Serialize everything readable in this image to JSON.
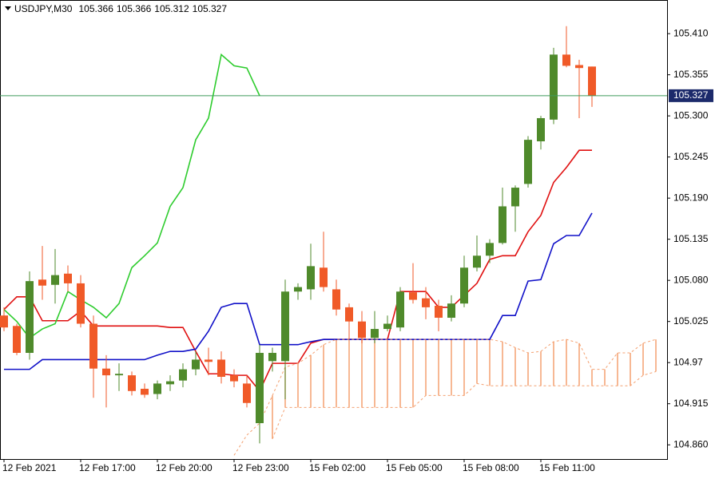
{
  "chart_data": {
    "type": "candlestick",
    "title": "USDJPY,M30",
    "categories": [
      "12 Feb 2021",
      null,
      null,
      null,
      null,
      null,
      "12 Feb 17:00",
      null,
      null,
      null,
      null,
      null,
      "12 Feb 20:00",
      null,
      null,
      null,
      null,
      null,
      "12 Feb 23:00",
      null,
      null,
      null,
      null,
      null,
      "15 Feb 02:00",
      null,
      null,
      null,
      null,
      null,
      "15 Feb 05:00",
      null,
      null,
      null,
      null,
      null,
      "15 Feb 08:00",
      null,
      null,
      null,
      null,
      null,
      "15 Feb 11:00",
      null,
      null,
      null,
      null,
      null,
      null,
      null,
      null,
      null
    ],
    "ohlc": [
      [
        105.033,
        105.044,
        105.012,
        105.017
      ],
      [
        105.019,
        105.022,
        104.98,
        104.983
      ],
      [
        104.983,
        105.092,
        104.974,
        105.079
      ],
      [
        105.081,
        105.126,
        105.054,
        105.073
      ],
      [
        105.074,
        105.122,
        105.049,
        105.087
      ],
      [
        105.089,
        105.1,
        105.065,
        105.076
      ],
      [
        105.076,
        105.087,
        105.017,
        105.022
      ],
      [
        105.022,
        105.033,
        104.923,
        104.962
      ],
      [
        104.962,
        104.98,
        104.91,
        104.953
      ],
      [
        104.953,
        104.969,
        104.932,
        104.955
      ],
      [
        104.953,
        104.958,
        104.926,
        104.932
      ],
      [
        104.935,
        104.942,
        104.923,
        104.927
      ],
      [
        104.928,
        104.946,
        104.921,
        104.942
      ],
      [
        104.941,
        104.953,
        104.932,
        104.945
      ],
      [
        104.946,
        104.969,
        104.937,
        104.961
      ],
      [
        104.961,
        104.985,
        104.953,
        104.974
      ],
      [
        104.974,
        104.99,
        104.953,
        104.971
      ],
      [
        104.974,
        104.985,
        104.942,
        104.951
      ],
      [
        104.953,
        104.961,
        104.937,
        104.945
      ],
      [
        104.942,
        104.953,
        104.91,
        104.916
      ],
      [
        104.889,
        104.994,
        104.862,
        104.983
      ],
      [
        104.972,
        104.99,
        104.958,
        104.983
      ],
      [
        104.972,
        105.081,
        104.921,
        105.065
      ],
      [
        105.065,
        105.076,
        105.054,
        105.071
      ],
      [
        105.068,
        105.129,
        105.054,
        105.099
      ],
      [
        105.097,
        105.145,
        105.065,
        105.071
      ],
      [
        105.068,
        105.081,
        105.033,
        105.041
      ],
      [
        105.044,
        105.049,
        105.001,
        105.025
      ],
      [
        105.025,
        105.039,
        104.996,
        105.003
      ],
      [
        105.003,
        105.039,
        104.996,
        105.015
      ],
      [
        105.015,
        105.033,
        105.012,
        105.022
      ],
      [
        105.017,
        105.071,
        105.012,
        105.065
      ],
      [
        105.064,
        105.103,
        105.049,
        105.054
      ],
      [
        105.056,
        105.071,
        105.028,
        105.044
      ],
      [
        105.046,
        105.054,
        105.012,
        105.03
      ],
      [
        105.03,
        105.06,
        105.025,
        105.049
      ],
      [
        105.049,
        105.113,
        105.044,
        105.097
      ],
      [
        105.097,
        105.14,
        105.092,
        105.113
      ],
      [
        105.113,
        105.135,
        105.103,
        105.13
      ],
      [
        105.13,
        105.204,
        105.128,
        105.179
      ],
      [
        105.179,
        105.207,
        105.145,
        105.204
      ],
      [
        105.209,
        105.273,
        105.204,
        105.268
      ],
      [
        105.266,
        105.3,
        105.255,
        105.297
      ],
      [
        105.295,
        105.391,
        105.289,
        105.382
      ],
      [
        105.382,
        105.42,
        105.365,
        105.367
      ],
      [
        105.368,
        105.375,
        105.297,
        105.364
      ],
      [
        105.366,
        105.366,
        105.312,
        105.327
      ],
      null,
      null,
      null,
      null,
      null
    ],
    "up_color": "#4f8a2b",
    "down_color": "#f05a28",
    "series": [
      {
        "color": "#e01010",
        "values": [
          105.041,
          105.058,
          105.058,
          105.026,
          105.026,
          105.026,
          105.039,
          105.019,
          105.019,
          105.019,
          105.019,
          105.019,
          105.019,
          105.017,
          105.017,
          104.985,
          104.955,
          104.955,
          104.953,
          104.953,
          104.932,
          104.969,
          104.969,
          104.969,
          104.996,
          105.001,
          105.001,
          105.001,
          105.001,
          105.001,
          105.001,
          105.065,
          105.065,
          105.065,
          105.044,
          105.044,
          105.06,
          105.076,
          105.108,
          105.113,
          105.113,
          105.145,
          105.167,
          105.211,
          105.231,
          105.254,
          105.254,
          null,
          null,
          null,
          null,
          null
        ]
      },
      {
        "color": "#1010c8",
        "values": [
          104.961,
          104.961,
          104.961,
          104.974,
          104.974,
          104.974,
          104.974,
          104.974,
          104.974,
          104.974,
          104.974,
          104.974,
          104.98,
          104.985,
          104.985,
          104.988,
          105.012,
          105.044,
          105.049,
          105.049,
          104.994,
          104.994,
          104.994,
          104.994,
          104.998,
          105.001,
          105.001,
          105.001,
          105.001,
          105.001,
          105.001,
          105.001,
          105.001,
          105.001,
          105.001,
          105.001,
          105.001,
          105.001,
          105.001,
          105.033,
          105.033,
          105.079,
          105.081,
          105.129,
          105.14,
          105.14,
          105.17,
          null,
          null,
          null,
          null,
          null
        ]
      },
      {
        "color": "#2ecc2e",
        "values": [
          105.041,
          105.025,
          105.003,
          105.015,
          105.022,
          105.065,
          105.054,
          105.044,
          105.03,
          105.049,
          105.097,
          105.113,
          105.13,
          105.179,
          105.204,
          105.268,
          105.297,
          105.382,
          105.367,
          105.364,
          105.327,
          null,
          null,
          null,
          null,
          null,
          null,
          null,
          null,
          null,
          null,
          null,
          null,
          null,
          null,
          null,
          null,
          null,
          null,
          null,
          null,
          null,
          null,
          null,
          null,
          null,
          null,
          null,
          null,
          null,
          null,
          null
        ]
      },
      {
        "color": "#f4a070",
        "dashed": true,
        "values": [
          null,
          null,
          null,
          null,
          null,
          null,
          null,
          null,
          null,
          null,
          null,
          null,
          null,
          null,
          null,
          null,
          null,
          null,
          104.846,
          104.873,
          104.889,
          104.926,
          104.964,
          104.969,
          104.98,
          104.994,
          105.001,
          105.001,
          105.001,
          105.001,
          105.001,
          105.001,
          105.001,
          105.001,
          105.001,
          105.001,
          105.001,
          105.001,
          105.001,
          104.998,
          104.99,
          104.983,
          104.985,
          104.998,
          105.001,
          104.996,
          104.961,
          104.961,
          104.983,
          104.983,
          104.996,
          105.001
        ]
      },
      {
        "color": "#f4a070",
        "dashed": true,
        "values": [
          null,
          null,
          null,
          null,
          null,
          null,
          null,
          null,
          null,
          null,
          null,
          null,
          null,
          null,
          null,
          null,
          null,
          null,
          null,
          null,
          null,
          104.868,
          104.91,
          104.91,
          104.91,
          104.91,
          104.91,
          104.91,
          104.91,
          104.91,
          104.91,
          104.91,
          104.91,
          104.926,
          104.926,
          104.926,
          104.926,
          104.942,
          104.939,
          104.939,
          104.939,
          104.939,
          104.939,
          104.939,
          104.939,
          104.939,
          104.939,
          104.939,
          104.939,
          104.939,
          104.953,
          104.958
        ]
      }
    ],
    "cloud_color": "#f4a070",
    "last_price_color": "#3f9a5c",
    "last_label_color": "#1c2a6b",
    "ylim": [
      104.841,
      105.455
    ],
    "yticks": [
      {
        "value": 104.86,
        "label": "104.860"
      },
      104.915,
      104.97,
      105.025,
      {
        "value": 105.08,
        "label": "105.080"
      },
      105.135,
      {
        "value": 105.19,
        "label": "105.190"
      },
      105.245,
      {
        "value": 105.3,
        "label": "105.300"
      },
      105.355,
      {
        "value": 105.41,
        "label": "105.410"
      }
    ]
  }
}
